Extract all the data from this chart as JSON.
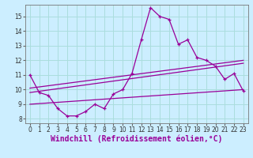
{
  "bg_color": "#cceeff",
  "line_color": "#990099",
  "grid_color": "#aadddd",
  "xlim": [
    -0.5,
    23.5
  ],
  "ylim": [
    7.7,
    15.8
  ],
  "yticks": [
    8,
    9,
    10,
    11,
    12,
    13,
    14,
    15
  ],
  "xticks": [
    0,
    1,
    2,
    3,
    4,
    5,
    6,
    7,
    8,
    9,
    10,
    11,
    12,
    13,
    14,
    15,
    16,
    17,
    18,
    19,
    20,
    21,
    22,
    23
  ],
  "line1_x": [
    0,
    1,
    2,
    3,
    4,
    5,
    6,
    7,
    8,
    9,
    10,
    11,
    12,
    13,
    14,
    15,
    16,
    17,
    18,
    19,
    20,
    21,
    22,
    23
  ],
  "line1_y": [
    11.0,
    9.8,
    9.6,
    8.7,
    8.2,
    8.2,
    8.5,
    9.0,
    8.7,
    9.7,
    10.0,
    11.1,
    13.4,
    15.6,
    15.0,
    14.8,
    13.1,
    13.4,
    12.2,
    12.0,
    11.6,
    10.7,
    11.1,
    9.9
  ],
  "line2_x": [
    0,
    23
  ],
  "line2_y": [
    9.8,
    11.8
  ],
  "line3_x": [
    0,
    23
  ],
  "line3_y": [
    10.1,
    12.0
  ],
  "line4_x": [
    0,
    23
  ],
  "line4_y": [
    9.0,
    10.0
  ],
  "xlabel": "Windchill (Refroidissement éolien,°C)",
  "tick_fontsize": 5.5,
  "xlabel_fontsize": 7.0
}
